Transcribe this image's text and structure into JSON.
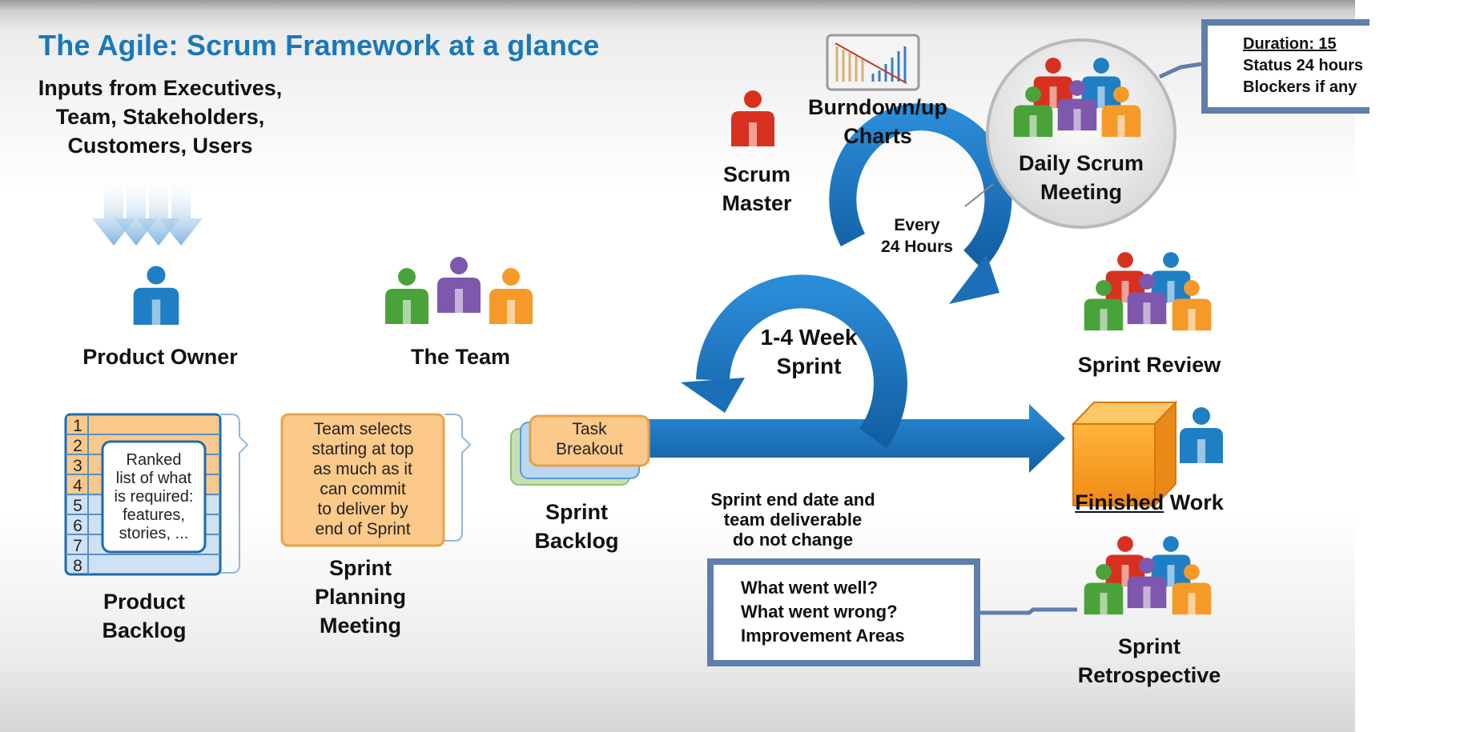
{
  "title": "The Agile: Scrum Framework at a glance",
  "inputs": [
    "Inputs from Executives,",
    "Team, Stakeholders,",
    "Customers, Users"
  ],
  "product_owner": "Product Owner",
  "the_team": "The Team",
  "scrum_master": [
    "Scrum",
    "Master"
  ],
  "burndown": [
    "Burndown/up",
    "Charts"
  ],
  "daily_scrum": [
    "Daily Scrum",
    "Meeting"
  ],
  "daily_note": {
    "duration": "Duration: 15",
    "status": "Status 24 hours",
    "blockers": "Blockers if any"
  },
  "every_24": [
    "Every",
    "24 Hours"
  ],
  "sprint_loop": [
    "1-4 Week",
    "Sprint"
  ],
  "sprint_review": "Sprint Review",
  "finished_work": {
    "underlined": "Finished",
    "rest": " Work"
  },
  "sprint_retrospective": [
    "Sprint",
    "Retrospective"
  ],
  "retro_note": [
    "What went well?",
    "What went wrong?",
    "Improvement Areas"
  ],
  "sprint_end_note": [
    "Sprint end date and",
    "team deliverable",
    "do not change"
  ],
  "product_backlog": {
    "rows": [
      "1",
      "2",
      "3",
      "4",
      "5",
      "6",
      "7",
      "8"
    ],
    "card": [
      "Ranked",
      "list of what",
      "is required:",
      "features,",
      "stories, ..."
    ],
    "label": [
      "Product",
      "Backlog"
    ]
  },
  "sprint_planning": {
    "card": [
      "Team selects",
      "starting at top",
      "as much as it",
      "can commit",
      "to deliver by",
      "end of Sprint"
    ],
    "label": [
      "Sprint",
      "Planning",
      "Meeting"
    ]
  },
  "sprint_backlog": {
    "card": [
      "Task",
      "Breakout"
    ],
    "label": [
      "Sprint",
      "Backlog"
    ]
  },
  "colors": {
    "title_blue": "#1a78b8",
    "arrow_blue": "#1976c2",
    "person_blue": "#1f7fc4",
    "person_red": "#d8301e",
    "person_green": "#4aa33a",
    "person_purple": "#7e58ad",
    "person_orange": "#f59a28",
    "card_orange": "#fbc98a",
    "note_border": "#5e7fae"
  }
}
